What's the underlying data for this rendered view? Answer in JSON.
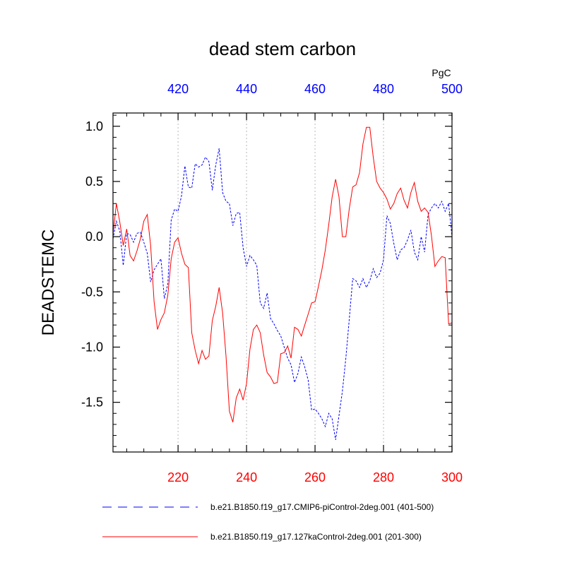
{
  "chart_data": {
    "type": "line",
    "title": "dead stem carbon",
    "units": "PgC",
    "ylabel": "DEADSTEMC",
    "ylim": [
      -1.95,
      1.12
    ],
    "yticks": [
      1.0,
      0.5,
      0.0,
      -0.5,
      -1.0,
      -1.5
    ],
    "ytick_labels": [
      "1.0",
      "0.5",
      "0.0",
      "-0.5",
      "-1.0",
      "-1.5"
    ],
    "bottom_axis": {
      "range": [
        201,
        300
      ],
      "ticks": [
        220,
        240,
        260,
        280,
        300
      ],
      "tick_labels": [
        "220",
        "240",
        "260",
        "280",
        "300"
      ],
      "color": "#ff0000"
    },
    "top_axis": {
      "range": [
        401,
        500
      ],
      "ticks": [
        420,
        440,
        460,
        480,
        500
      ],
      "tick_labels": [
        "420",
        "440",
        "460",
        "480",
        "500"
      ],
      "color": "#0000ff"
    },
    "gridlines_x": [
      220,
      240,
      260,
      280
    ],
    "series": [
      {
        "name": "b.e21.B1850.f19_g17.CMIP6-piControl-2deg.001 (401-500)",
        "color": "#0000ff",
        "dash": "dashed",
        "axis": "top",
        "x_start": 401,
        "values": [
          -0.02,
          0.14,
          0.05,
          -0.26,
          0.03,
          0.02,
          -0.05,
          0.03,
          0.04,
          -0.05,
          -0.15,
          -0.41,
          -0.3,
          -0.25,
          -0.2,
          -0.56,
          -0.43,
          0.15,
          0.25,
          0.23,
          0.37,
          0.64,
          0.45,
          0.44,
          0.66,
          0.63,
          0.65,
          0.72,
          0.68,
          0.42,
          0.65,
          0.8,
          0.4,
          0.32,
          0.3,
          0.1,
          0.21,
          0.22,
          -0.1,
          -0.27,
          -0.17,
          -0.21,
          -0.26,
          -0.6,
          -0.65,
          -0.51,
          -0.74,
          -0.79,
          -0.85,
          -0.9,
          -1.0,
          -1.1,
          -1.16,
          -1.32,
          -1.24,
          -1.09,
          -1.18,
          -1.3,
          -1.57,
          -1.56,
          -1.6,
          -1.65,
          -1.72,
          -1.6,
          -1.65,
          -1.84,
          -1.62,
          -1.4,
          -1.1,
          -0.75,
          -0.38,
          -0.4,
          -0.46,
          -0.38,
          -0.46,
          -0.4,
          -0.29,
          -0.37,
          -0.33,
          -0.21,
          0.19,
          0.12,
          -0.06,
          -0.21,
          -0.12,
          -0.1,
          -0.03,
          0.06,
          -0.14,
          -0.21,
          0.0,
          -0.14,
          0.2,
          0.26,
          0.3,
          0.26,
          0.32,
          0.23,
          0.3,
          0.0
        ]
      },
      {
        "name": "b.e21.B1850.f19_g17.127kaControl-2deg.001 (201-300)",
        "color": "#ff0000",
        "dash": "solid",
        "axis": "bottom",
        "x_start": 201,
        "values": [
          0.02,
          0.3,
          0.13,
          -0.08,
          0.07,
          -0.17,
          -0.22,
          -0.13,
          -0.02,
          0.14,
          0.2,
          -0.08,
          -0.59,
          -0.84,
          -0.75,
          -0.69,
          -0.53,
          -0.2,
          -0.05,
          -0.01,
          -0.15,
          -0.25,
          -0.28,
          -0.87,
          -1.03,
          -1.15,
          -1.03,
          -1.11,
          -1.08,
          -0.76,
          -0.63,
          -0.46,
          -0.69,
          -1.08,
          -1.58,
          -1.68,
          -1.46,
          -1.38,
          -1.48,
          -1.33,
          -1.02,
          -0.84,
          -0.8,
          -0.87,
          -1.07,
          -1.23,
          -1.27,
          -1.33,
          -1.32,
          -1.06,
          -1.05,
          -0.99,
          -1.1,
          -0.82,
          -0.84,
          -0.9,
          -0.8,
          -0.7,
          -0.6,
          -0.59,
          -0.45,
          -0.3,
          -0.12,
          0.11,
          0.36,
          0.52,
          0.36,
          0.0,
          0.0,
          0.25,
          0.45,
          0.47,
          0.58,
          0.84,
          0.99,
          0.99,
          0.72,
          0.5,
          0.44,
          0.4,
          0.34,
          0.25,
          0.3,
          0.39,
          0.44,
          0.33,
          0.26,
          0.4,
          0.49,
          0.32,
          0.23,
          0.26,
          0.22,
          0.01,
          -0.27,
          -0.22,
          -0.18,
          -0.19,
          -0.79,
          -0.78
        ]
      }
    ]
  }
}
